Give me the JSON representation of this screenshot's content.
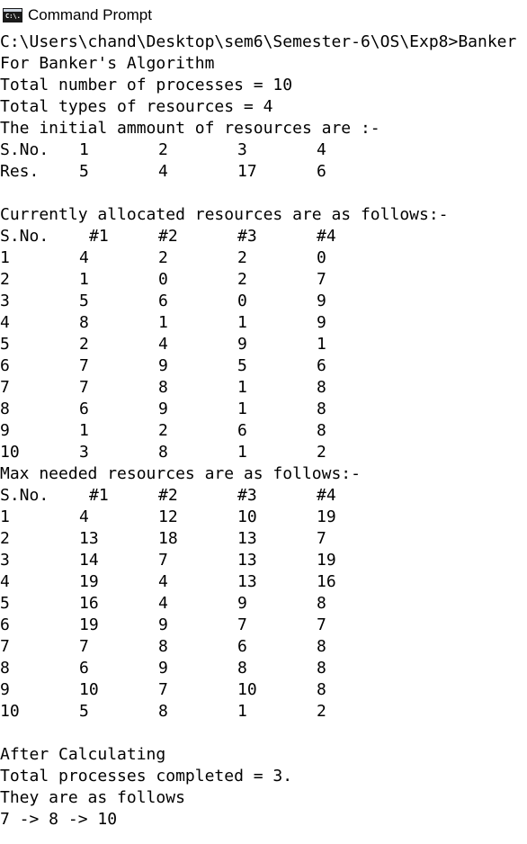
{
  "window": {
    "title": "Command Prompt",
    "icon": "console-app-icon",
    "icon_text": "C:\\."
  },
  "console": {
    "prompt_line": "C:\\Users\\chand\\Desktop\\sem6\\Semester-6\\OS\\Exp8>Banker",
    "heading": "For Banker's Algorithm",
    "total_processes_line": "Total number of processes = 10",
    "total_types_line": "Total types of resources = 4",
    "initial_heading": "The initial ammount of resources are :-",
    "initial_table": {
      "sno_label": "S.No.",
      "indices": [
        "1",
        "2",
        "3",
        "4"
      ],
      "res_label": "Res.",
      "values": [
        "5",
        "4",
        "17",
        "6"
      ]
    },
    "allocated_heading": "Currently allocated resources are as follows:-",
    "allocated_table": {
      "headers": [
        "S.No.",
        "#1",
        "#2",
        "#3",
        "#4"
      ],
      "rows": [
        [
          "1",
          "4",
          "2",
          "2",
          "0"
        ],
        [
          "2",
          "1",
          "0",
          "2",
          "7"
        ],
        [
          "3",
          "5",
          "6",
          "0",
          "9"
        ],
        [
          "4",
          "8",
          "1",
          "1",
          "9"
        ],
        [
          "5",
          "2",
          "4",
          "9",
          "1"
        ],
        [
          "6",
          "7",
          "9",
          "5",
          "6"
        ],
        [
          "7",
          "7",
          "8",
          "1",
          "8"
        ],
        [
          "8",
          "6",
          "9",
          "1",
          "8"
        ],
        [
          "9",
          "1",
          "2",
          "6",
          "8"
        ],
        [
          "10",
          "3",
          "8",
          "1",
          "2"
        ]
      ]
    },
    "max_heading": "Max needed resources are as follows:-",
    "max_table": {
      "headers": [
        "S.No.",
        "#1",
        "#2",
        "#3",
        "#4"
      ],
      "rows": [
        [
          "1",
          "4",
          "12",
          "10",
          "19"
        ],
        [
          "2",
          "13",
          "18",
          "13",
          "7"
        ],
        [
          "3",
          "14",
          "7",
          "13",
          "19"
        ],
        [
          "4",
          "19",
          "4",
          "13",
          "16"
        ],
        [
          "5",
          "16",
          "4",
          "9",
          "8"
        ],
        [
          "6",
          "19",
          "9",
          "7",
          "7"
        ],
        [
          "7",
          "7",
          "8",
          "6",
          "8"
        ],
        [
          "8",
          "6",
          "9",
          "8",
          "8"
        ],
        [
          "9",
          "10",
          "7",
          "10",
          "8"
        ],
        [
          "10",
          "5",
          "8",
          "1",
          "2"
        ]
      ]
    },
    "after_heading": "After Calculating",
    "completed_line": "Total processes completed = 3.",
    "follows_line": "They are as follows",
    "sequence_line": "7 -> 8 -> 10"
  }
}
